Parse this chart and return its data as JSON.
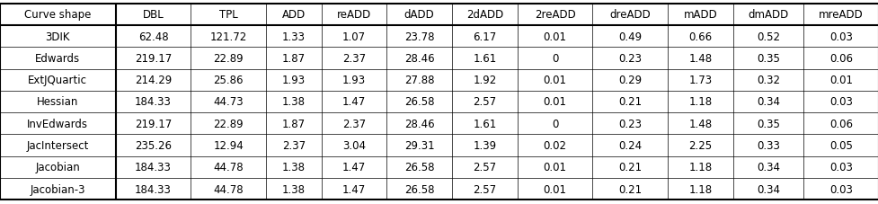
{
  "columns": [
    "Curve shape",
    "DBL",
    "TPL",
    "ADD",
    "reADD",
    "dADD",
    "2dADD",
    "2reADD",
    "dreADD",
    "mADD",
    "dmADD",
    "mreADD"
  ],
  "rows": [
    [
      "3DIK",
      "62.48",
      "121.72",
      "1.33",
      "1.07",
      "23.78",
      "6.17",
      "0.01",
      "0.49",
      "0.66",
      "0.52",
      "0.03"
    ],
    [
      "Edwards",
      "219.17",
      "22.89",
      "1.87",
      "2.37",
      "28.46",
      "1.61",
      "0",
      "0.23",
      "1.48",
      "0.35",
      "0.06"
    ],
    [
      "ExtJQuartic",
      "214.29",
      "25.86",
      "1.93",
      "1.93",
      "27.88",
      "1.92",
      "0.01",
      "0.29",
      "1.73",
      "0.32",
      "0.01"
    ],
    [
      "Hessian",
      "184.33",
      "44.73",
      "1.38",
      "1.47",
      "26.58",
      "2.57",
      "0.01",
      "0.21",
      "1.18",
      "0.34",
      "0.03"
    ],
    [
      "InvEdwards",
      "219.17",
      "22.89",
      "1.87",
      "2.37",
      "28.46",
      "1.61",
      "0",
      "0.23",
      "1.48",
      "0.35",
      "0.06"
    ],
    [
      "JacIntersect",
      "235.26",
      "12.94",
      "2.37",
      "3.04",
      "29.31",
      "1.39",
      "0.02",
      "0.24",
      "2.25",
      "0.33",
      "0.05"
    ],
    [
      "Jacobian",
      "184.33",
      "44.78",
      "1.38",
      "1.47",
      "26.58",
      "2.57",
      "0.01",
      "0.21",
      "1.18",
      "0.34",
      "0.03"
    ],
    [
      "Jacobian-3",
      "184.33",
      "44.78",
      "1.38",
      "1.47",
      "26.58",
      "2.57",
      "0.01",
      "0.21",
      "1.18",
      "0.34",
      "0.03"
    ]
  ],
  "col_widths": [
    1.15,
    0.75,
    0.75,
    0.55,
    0.65,
    0.65,
    0.65,
    0.75,
    0.75,
    0.65,
    0.7,
    0.75
  ],
  "fontsize": 8.5,
  "lw_thick": 1.5,
  "lw_thin": 0.5,
  "text_color": "#000000",
  "bg_color": "#ffffff"
}
